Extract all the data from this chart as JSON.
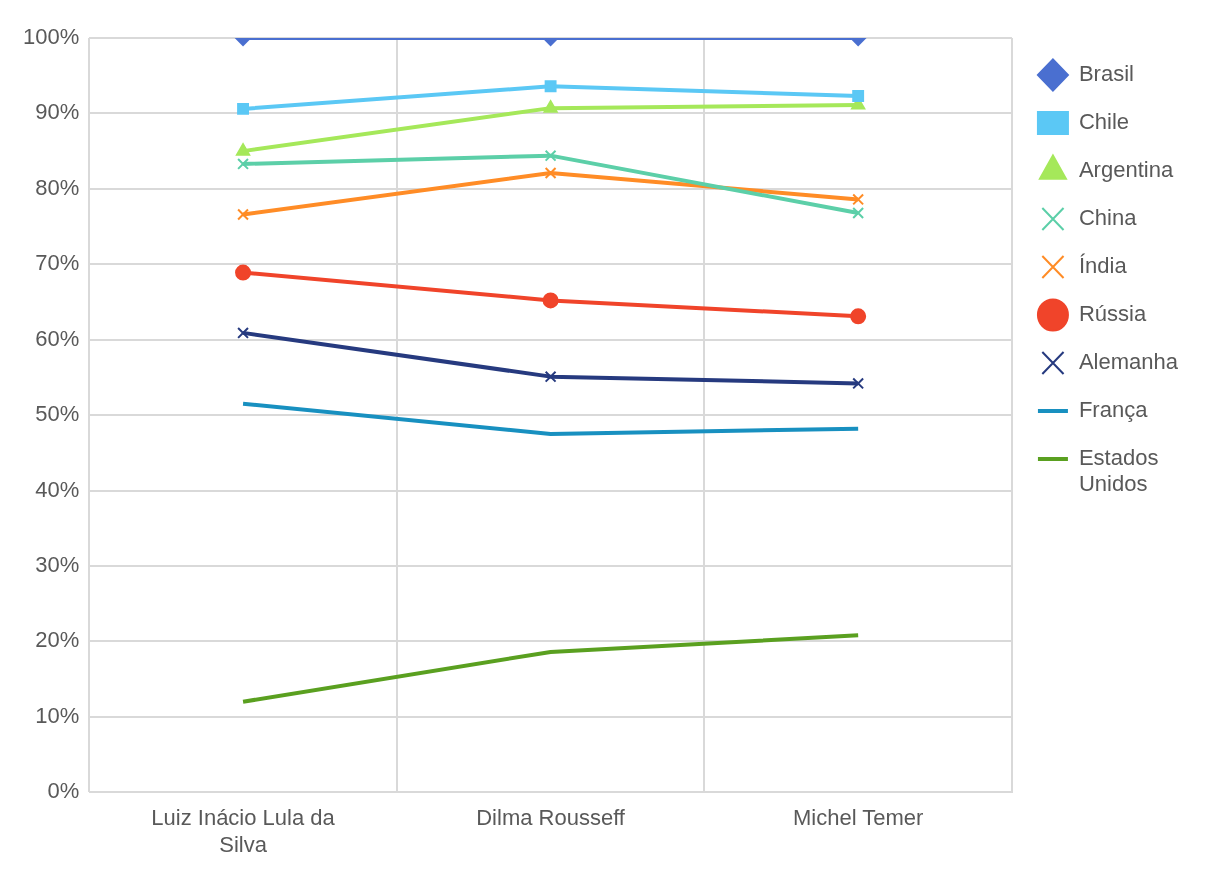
{
  "chart_data": {
    "type": "line",
    "categories": [
      "Luiz Inácio Lula da Silva",
      "Dilma Rousseff",
      "Michel Temer"
    ],
    "ylim": [
      0,
      100
    ],
    "yticks": [
      {
        "value": 0,
        "label": "0%"
      },
      {
        "value": 10,
        "label": "10%"
      },
      {
        "value": 20,
        "label": "20%"
      },
      {
        "value": 30,
        "label": "30%"
      },
      {
        "value": 40,
        "label": "40%"
      },
      {
        "value": 50,
        "label": "50%"
      },
      {
        "value": 60,
        "label": "60%"
      },
      {
        "value": 70,
        "label": "70%"
      },
      {
        "value": 80,
        "label": "80%"
      },
      {
        "value": 90,
        "label": "90%"
      },
      {
        "value": 100,
        "label": "100%"
      }
    ],
    "grid": true,
    "legend": "right",
    "line_style": "solid",
    "series": [
      {
        "name": "Brasil",
        "color": "#4a6fd0",
        "marker": "diamond",
        "values": [
          100,
          100,
          100
        ]
      },
      {
        "name": "Chile",
        "color": "#5bc8f5",
        "marker": "square",
        "values": [
          90.6,
          93.6,
          92.3
        ]
      },
      {
        "name": "Argentina",
        "color": "#a5e85a",
        "marker": "triangle",
        "values": [
          85,
          90.7,
          91.1
        ]
      },
      {
        "name": "China",
        "color": "#5ccfa8",
        "marker": "cross",
        "values": [
          83.3,
          84.4,
          76.8
        ]
      },
      {
        "name": "Índia",
        "color": "#ff8c26",
        "marker": "cross",
        "values": [
          76.6,
          82.1,
          78.6
        ]
      },
      {
        "name": "Rússia",
        "color": "#f0442a",
        "marker": "circle",
        "values": [
          68.9,
          65.2,
          63.1
        ]
      },
      {
        "name": "Alemanha",
        "color": "#263a7f",
        "marker": "cross",
        "values": [
          60.9,
          55.1,
          54.2
        ]
      },
      {
        "name": "França",
        "color": "#1890c0",
        "marker": "none",
        "values": [
          51.5,
          47.5,
          48.2
        ]
      },
      {
        "name": "Estados Unidos",
        "color": "#5aa020",
        "marker": "none",
        "values": [
          12,
          18.6,
          20.8
        ]
      }
    ]
  }
}
